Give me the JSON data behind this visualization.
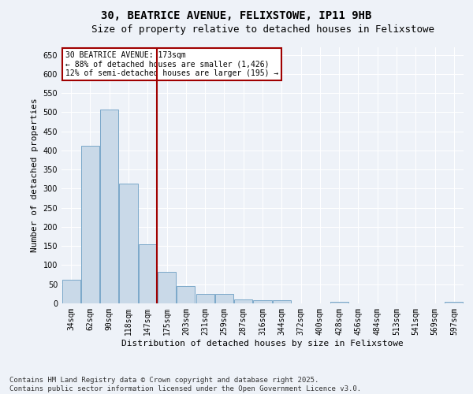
{
  "title": "30, BEATRICE AVENUE, FELIXSTOWE, IP11 9HB",
  "subtitle": "Size of property relative to detached houses in Felixstowe",
  "xlabel": "Distribution of detached houses by size in Felixstowe",
  "ylabel": "Number of detached properties",
  "categories": [
    "34sqm",
    "62sqm",
    "90sqm",
    "118sqm",
    "147sqm",
    "175sqm",
    "203sqm",
    "231sqm",
    "259sqm",
    "287sqm",
    "316sqm",
    "344sqm",
    "372sqm",
    "400sqm",
    "428sqm",
    "456sqm",
    "484sqm",
    "513sqm",
    "541sqm",
    "569sqm",
    "597sqm"
  ],
  "values": [
    62,
    412,
    507,
    313,
    155,
    83,
    46,
    25,
    25,
    11,
    8,
    8,
    0,
    0,
    5,
    0,
    0,
    0,
    0,
    0,
    5
  ],
  "bar_color": "#c9d9e8",
  "bar_edge_color": "#7aa8c9",
  "vline_color": "#a00000",
  "annotation_text": "30 BEATRICE AVENUE: 173sqm\n← 88% of detached houses are smaller (1,426)\n12% of semi-detached houses are larger (195) →",
  "annotation_box_color": "#ffffff",
  "annotation_box_edge": "#a00000",
  "ylim": [
    0,
    670
  ],
  "yticks": [
    0,
    50,
    100,
    150,
    200,
    250,
    300,
    350,
    400,
    450,
    500,
    550,
    600,
    650
  ],
  "footnote": "Contains HM Land Registry data © Crown copyright and database right 2025.\nContains public sector information licensed under the Open Government Licence v3.0.",
  "background_color": "#eef2f8",
  "grid_color": "#ffffff",
  "title_fontsize": 10,
  "subtitle_fontsize": 9,
  "axis_label_fontsize": 8,
  "tick_fontsize": 7,
  "footnote_fontsize": 6.5
}
